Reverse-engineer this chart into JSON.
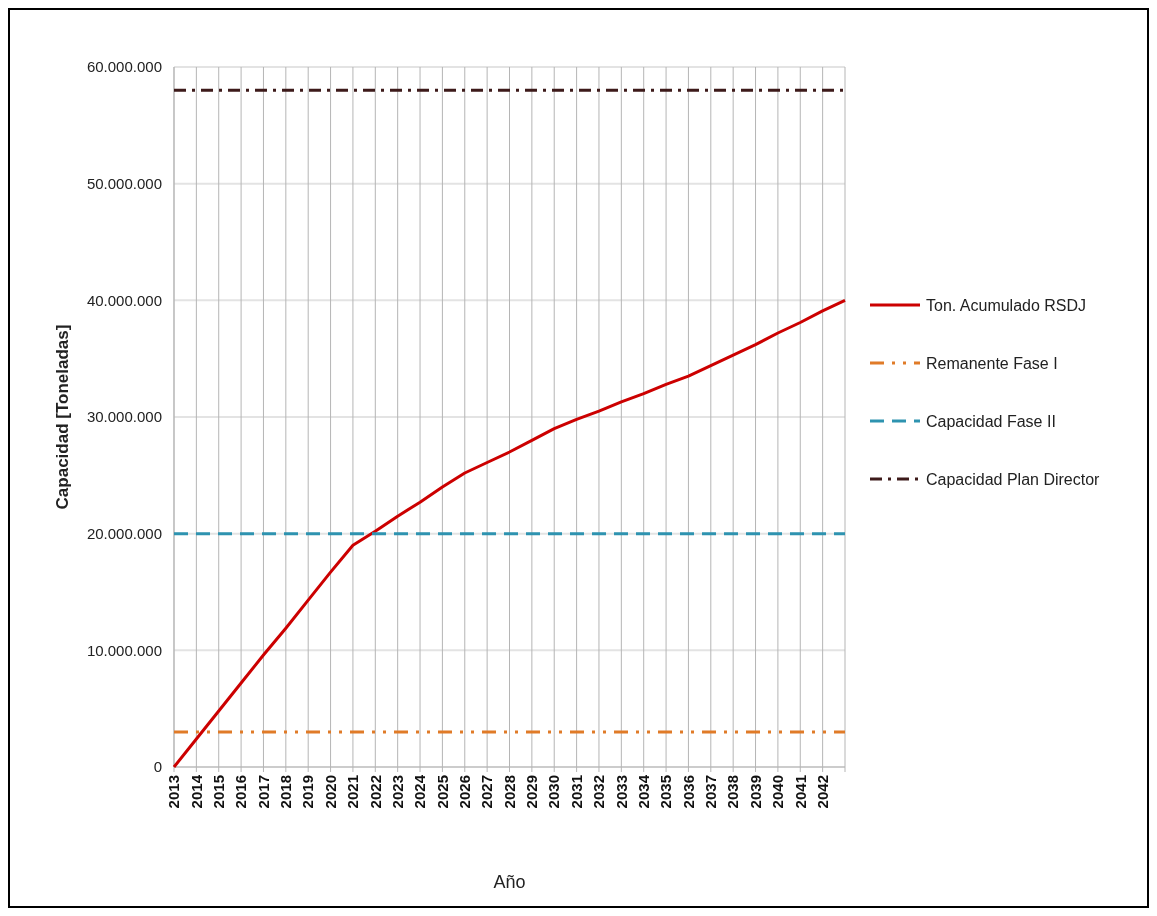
{
  "chart_data": {
    "type": "line",
    "xlabel": "Año",
    "ylabel": "Capacidad [Toneladas]",
    "categories": [
      "2013",
      "2014",
      "2015",
      "2016",
      "2017",
      "2018",
      "2019",
      "2020",
      "2021",
      "2022",
      "2023",
      "2024",
      "2025",
      "2026",
      "2027",
      "2028",
      "2029",
      "2030",
      "2031",
      "2032",
      "2033",
      "2034",
      "2035",
      "2036",
      "2037",
      "2038",
      "2039",
      "2040",
      "2041",
      "2042",
      null
    ],
    "series": [
      {
        "name": "Ton. Acumulado RSDJ",
        "color": "#cc0000",
        "line_style": "solid",
        "values": [
          0,
          2400000,
          4800000,
          7200000,
          9600000,
          11900000,
          14300000,
          16700000,
          19000000,
          20200000,
          21500000,
          22700000,
          24000000,
          25200000,
          26100000,
          27000000,
          28000000,
          29000000,
          29800000,
          30500000,
          31300000,
          32000000,
          32800000,
          33500000,
          34400000,
          35300000,
          36200000,
          37200000,
          38100000,
          39100000,
          40000000
        ]
      },
      {
        "name": "Remanente Fase I",
        "color": "#e07b28",
        "line_style": "dashdotdot",
        "values": [
          3000000,
          3000000,
          3000000,
          3000000,
          3000000,
          3000000,
          3000000,
          3000000,
          3000000,
          3000000,
          3000000,
          3000000,
          3000000,
          3000000,
          3000000,
          3000000,
          3000000,
          3000000,
          3000000,
          3000000,
          3000000,
          3000000,
          3000000,
          3000000,
          3000000,
          3000000,
          3000000,
          3000000,
          3000000,
          3000000,
          3000000
        ]
      },
      {
        "name": "Capacidad Fase II",
        "color": "#2e93b0",
        "line_style": "dashed",
        "values": [
          20000000,
          20000000,
          20000000,
          20000000,
          20000000,
          20000000,
          20000000,
          20000000,
          20000000,
          20000000,
          20000000,
          20000000,
          20000000,
          20000000,
          20000000,
          20000000,
          20000000,
          20000000,
          20000000,
          20000000,
          20000000,
          20000000,
          20000000,
          20000000,
          20000000,
          20000000,
          20000000,
          20000000,
          20000000,
          20000000,
          20000000
        ]
      },
      {
        "name": "Capacidad Plan Director",
        "color": "#3d1a1a",
        "line_style": "dashdot",
        "values": [
          58000000,
          58000000,
          58000000,
          58000000,
          58000000,
          58000000,
          58000000,
          58000000,
          58000000,
          58000000,
          58000000,
          58000000,
          58000000,
          58000000,
          58000000,
          58000000,
          58000000,
          58000000,
          58000000,
          58000000,
          58000000,
          58000000,
          58000000,
          58000000,
          58000000,
          58000000,
          58000000,
          58000000,
          58000000,
          58000000,
          58000000
        ]
      }
    ],
    "ylim": [
      0,
      60000000
    ],
    "yticks": [
      {
        "value": 0,
        "label": "0"
      },
      {
        "value": 10000000,
        "label": "10.000.000"
      },
      {
        "value": 20000000,
        "label": "20.000.000"
      },
      {
        "value": 30000000,
        "label": "30.000.000"
      },
      {
        "value": 40000000,
        "label": "40.000.000"
      },
      {
        "value": 50000000,
        "label": "50.000.000"
      },
      {
        "value": 60000000,
        "label": "60.000.000"
      }
    ],
    "grid": true,
    "legend": "right"
  }
}
